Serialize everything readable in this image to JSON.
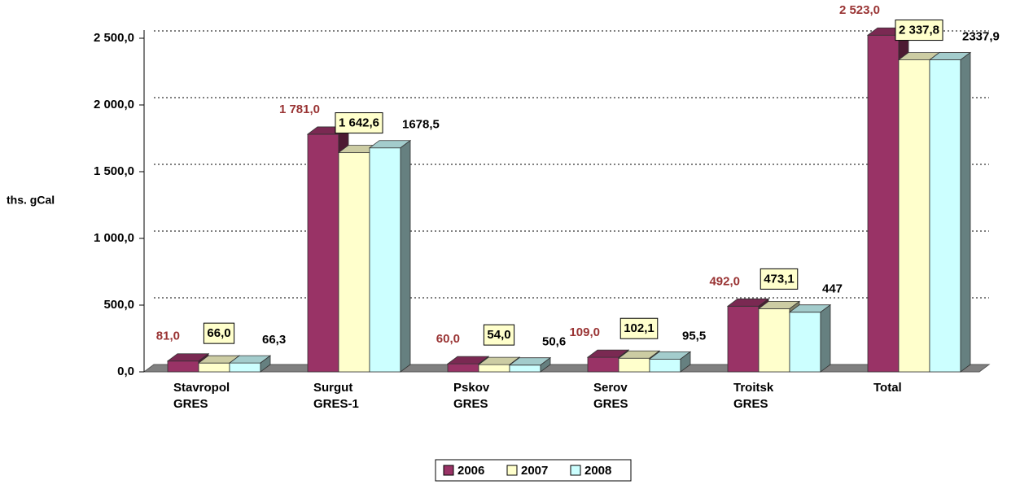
{
  "chart_data": {
    "type": "bar3d",
    "ylabel": "ths. gCal",
    "categories": [
      "Stavropol\nGRES",
      "Surgut\nGRES-1",
      "Pskov\nGRES",
      "Serov\nGRES",
      "Troitsk\nGRES",
      "Total"
    ],
    "series": [
      {
        "name": "2006",
        "color": "#993366",
        "values": [
          81,
          1781,
          60,
          109,
          492,
          2523
        ],
        "value_labels": [
          "81,0",
          "1 781,0",
          "60,0",
          "109,0",
          "492,0",
          "2 523,0"
        ]
      },
      {
        "name": "2007",
        "color": "#ffffcc",
        "values": [
          66,
          1642.6,
          54,
          102.1,
          473.1,
          2337.8
        ],
        "value_labels": [
          "66,0",
          "1 642,6",
          "54,0",
          "102,1",
          "473,1",
          "2 337,8"
        ]
      },
      {
        "name": "2008",
        "color": "#ccffff",
        "values": [
          66.3,
          1678.5,
          50.6,
          95.5,
          447,
          2337.9
        ],
        "value_labels": [
          "66,3",
          "1678,5",
          "50,6",
          "95,5",
          "447",
          "2337,9"
        ]
      }
    ],
    "ylim": [
      0,
      2500
    ],
    "yticks": [
      {
        "value": 0,
        "label": "0,0"
      },
      {
        "value": 500,
        "label": "500,0"
      },
      {
        "value": 1000,
        "label": "1 000,0"
      },
      {
        "value": 1500,
        "label": "1 500,0"
      },
      {
        "value": 2000,
        "label": "2 000,0"
      },
      {
        "value": 2500,
        "label": "2 500,0"
      }
    ],
    "grid": true,
    "legend": "bottom"
  }
}
